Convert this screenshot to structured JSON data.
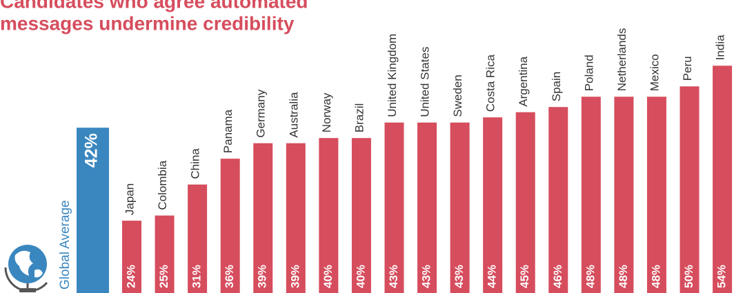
{
  "chart_data": {
    "type": "bar",
    "title_lines": [
      "Candidates who agree automated",
      "messages undermine credibility"
    ],
    "categories": [
      "Japan",
      "Colombia",
      "China",
      "Panama",
      "Germany",
      "Australia",
      "Norway",
      "Brazil",
      "United Kingdom",
      "United States",
      "Sweden",
      "Costa Rica",
      "Argentina",
      "Spain",
      "Poland",
      "Netherlands",
      "Mexico",
      "Peru",
      "India"
    ],
    "values": [
      24,
      25,
      31,
      36,
      39,
      39,
      40,
      40,
      43,
      43,
      43,
      44,
      45,
      46,
      48,
      48,
      48,
      50,
      54
    ],
    "value_labels": [
      "24%",
      "25%",
      "31%",
      "36%",
      "39%",
      "39%",
      "40%",
      "40%",
      "43%",
      "43%",
      "43%",
      "44%",
      "45%",
      "46%",
      "48%",
      "48%",
      "48%",
      "50%",
      "54%"
    ],
    "color": "#d64d5d",
    "average": {
      "label": "Global Average",
      "value": 42,
      "value_label": "42%",
      "color": "#3a87c0"
    },
    "ylim": [
      10,
      66
    ]
  }
}
